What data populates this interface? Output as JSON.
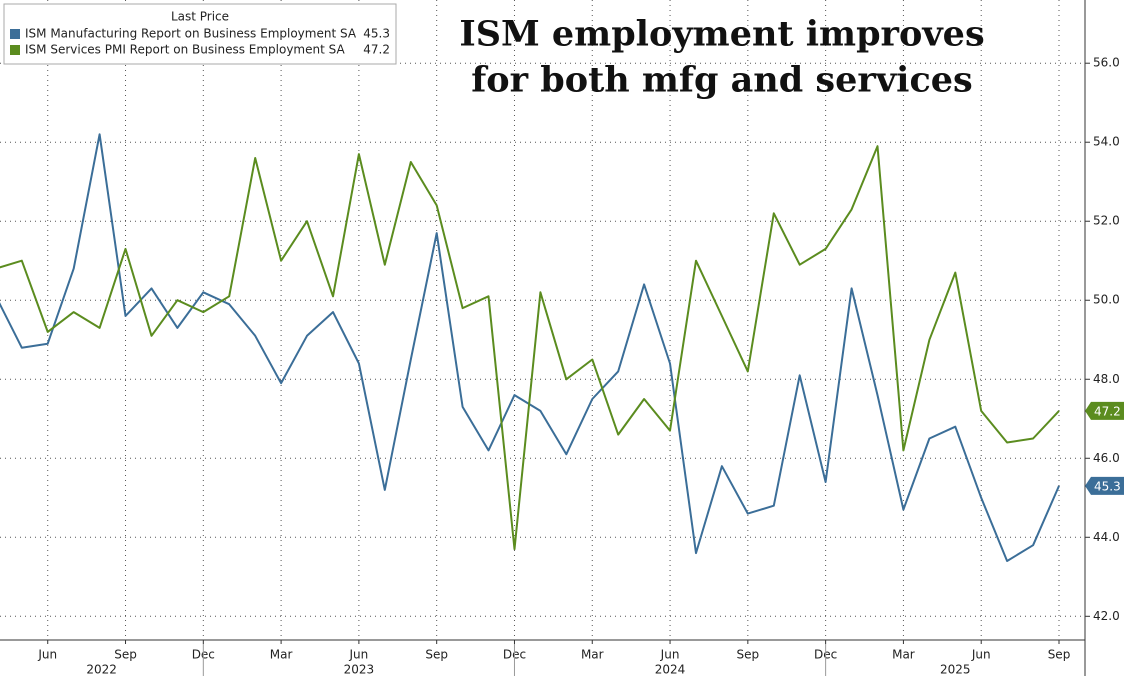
{
  "chart_data": {
    "type": "line",
    "title": [
      "ISM employment improves",
      "for both mfg and services"
    ],
    "legend_title": "Last Price",
    "categories": [
      null,
      null,
      "Jun",
      null,
      null,
      "Sep",
      null,
      null,
      "Dec",
      null,
      null,
      "Mar",
      null,
      null,
      "Jun",
      null,
      null,
      "Sep",
      null,
      null,
      "Dec",
      null,
      null,
      "Mar",
      null,
      null,
      "Jun",
      null,
      null,
      "Sep",
      null,
      null,
      "Dec",
      null,
      null,
      "Mar",
      null,
      null,
      "Jun",
      null,
      null,
      "Sep"
    ],
    "years": [
      "2022",
      "2023",
      "2024",
      "2025"
    ],
    "series": [
      {
        "name": "ISM Manufacturing Report on Business Employment SA",
        "color": "#3b6e98",
        "values": [
          50.1,
          48.8,
          48.9,
          50.8,
          54.2,
          49.6,
          50.3,
          49.3,
          50.2,
          49.9,
          49.1,
          47.9,
          49.1,
          49.7,
          48.4,
          45.2,
          48.5,
          51.7,
          47.3,
          46.2,
          47.6,
          47.2,
          46.1,
          47.5,
          48.2,
          50.4,
          48.4,
          43.6,
          45.8,
          44.6,
          44.8,
          48.1,
          45.4,
          50.3,
          47.6,
          44.7,
          46.5,
          46.8,
          45.0,
          43.4,
          43.8,
          45.3
        ]
      },
      {
        "name": "ISM Services PMI Report on Business Employment SA",
        "color": "#5b8c1f",
        "values": [
          50.8,
          51.0,
          49.2,
          49.7,
          49.3,
          51.3,
          49.1,
          50.0,
          49.7,
          50.1,
          53.6,
          51.0,
          52.0,
          50.1,
          53.7,
          50.9,
          53.5,
          52.4,
          49.8,
          50.1,
          43.7,
          50.2,
          48.0,
          48.5,
          46.6,
          47.5,
          46.7,
          51.0,
          49.6,
          48.2,
          52.2,
          50.9,
          51.3,
          52.3,
          53.9,
          46.2,
          49.0,
          50.7,
          47.2,
          46.4,
          46.5,
          47.2
        ]
      }
    ],
    "ylim": [
      41.4,
      57.6
    ],
    "yticks": [
      {
        "value": 42,
        "label": "42.0"
      },
      {
        "value": 44,
        "label": "44.0"
      },
      {
        "value": 46,
        "label": "46.0"
      },
      {
        "value": 48,
        "label": "48.0"
      },
      {
        "value": 50,
        "label": "50.0"
      },
      {
        "value": 52,
        "label": "52.0"
      },
      {
        "value": 54,
        "label": "54.0"
      },
      {
        "value": 56,
        "label": "56.0"
      }
    ],
    "grid": true,
    "legend": "upper left"
  }
}
